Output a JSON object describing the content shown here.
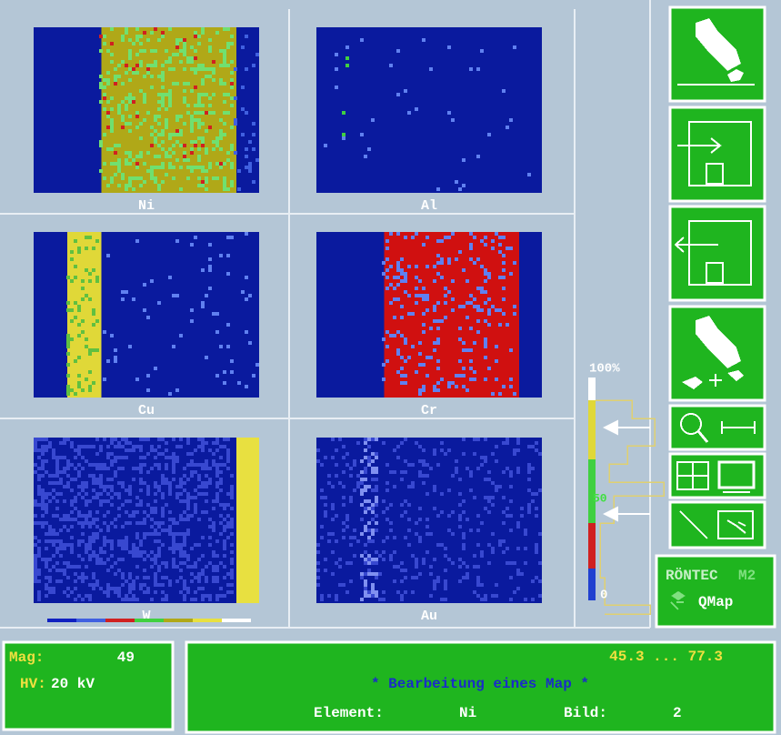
{
  "maps": [
    {
      "label": "Ni"
    },
    {
      "label": "Al"
    },
    {
      "label": "Cu"
    },
    {
      "label": "Cr"
    },
    {
      "label": "W"
    },
    {
      "label": "Au"
    }
  ],
  "scale": {
    "top": "100%",
    "mid": "50",
    "bottom": "0"
  },
  "brand": {
    "name": "RÖNTEC",
    "model": "M2",
    "app": "QMap"
  },
  "status": {
    "mag_label": "Mag:",
    "mag": "49",
    "hv_label": "HV:",
    "hv": "20 kV"
  },
  "info": {
    "range": "45.3 ... 77.3",
    "title": "* Bearbeitung eines Map *",
    "element_label": "Element:",
    "element": "Ni",
    "bild_label": "Bild:",
    "bild": "2"
  }
}
